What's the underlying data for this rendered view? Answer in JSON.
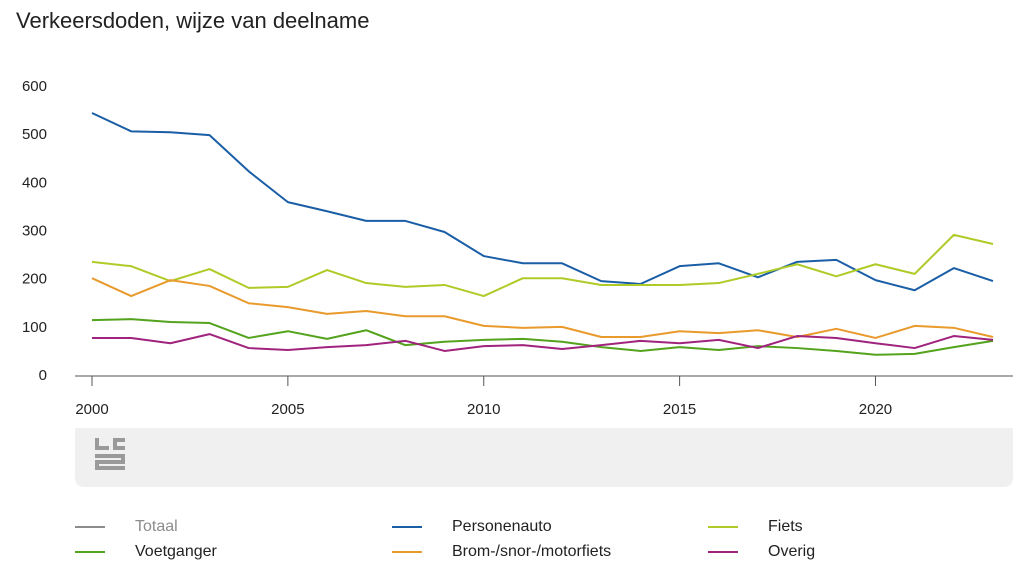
{
  "chart_data": {
    "type": "line",
    "title": "Verkeersdoden, wijze van deelname",
    "x": [
      2000,
      2001,
      2002,
      2003,
      2004,
      2005,
      2006,
      2007,
      2008,
      2009,
      2010,
      2011,
      2012,
      2013,
      2014,
      2015,
      2016,
      2017,
      2018,
      2019,
      2020,
      2021,
      2022,
      2023
    ],
    "xlim": [
      2000,
      2023
    ],
    "xticks": [
      2000,
      2005,
      2010,
      2015,
      2020
    ],
    "ylim": [
      0,
      600
    ],
    "yticks": [
      0,
      100,
      200,
      300,
      400,
      500,
      600
    ],
    "grid": false,
    "inactive_series": [
      {
        "name": "Totaal",
        "color": "#8c8c8c"
      }
    ],
    "series": [
      {
        "name": "Personenauto",
        "color": "#1a5ea6",
        "values": [
          546,
          508,
          506,
          500,
          425,
          361,
          342,
          322,
          322,
          299,
          249,
          234,
          234,
          197,
          191,
          228,
          234,
          205,
          237,
          241,
          199,
          178,
          224,
          197
        ]
      },
      {
        "name": "Fiets",
        "color": "#afcb27",
        "values": [
          237,
          228,
          197,
          222,
          183,
          185,
          220,
          193,
          185,
          189,
          166,
          203,
          203,
          189,
          189,
          189,
          193,
          212,
          232,
          207,
          232,
          212,
          293,
          274
        ]
      },
      {
        "name": "Voetganger",
        "color": "#53a31d",
        "values": [
          116,
          118,
          112,
          110,
          79,
          93,
          77,
          95,
          64,
          71,
          75,
          77,
          71,
          60,
          52,
          60,
          54,
          62,
          58,
          52,
          44,
          46,
          60,
          73
        ]
      },
      {
        "name": "Brom-/snor-/motorfiets",
        "color": "#e99a2c",
        "values": [
          203,
          166,
          199,
          187,
          151,
          143,
          129,
          135,
          124,
          124,
          104,
          100,
          102,
          81,
          81,
          93,
          89,
          95,
          81,
          98,
          79,
          104,
          100,
          81
        ]
      },
      {
        "name": "Overig",
        "color": "#a0237d",
        "values": [
          79,
          79,
          68,
          87,
          58,
          54,
          60,
          64,
          73,
          52,
          62,
          64,
          56,
          64,
          73,
          68,
          75,
          58,
          83,
          79,
          68,
          58,
          83,
          75
        ]
      }
    ]
  }
}
